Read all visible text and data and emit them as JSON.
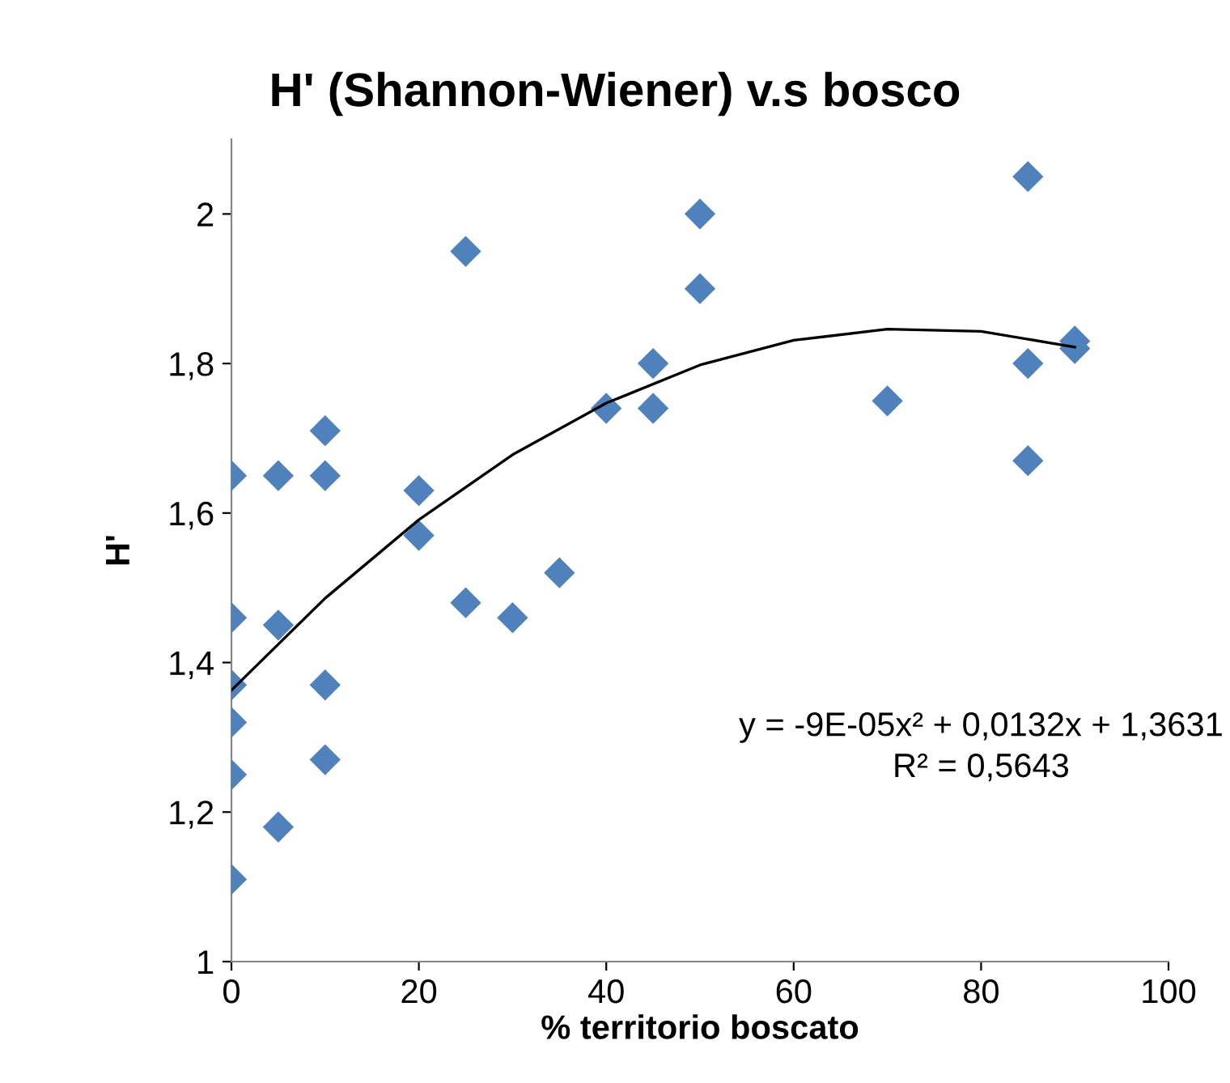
{
  "chart_data": {
    "type": "scatter",
    "title": "H' (Shannon-Wiener) v.s bosco",
    "xlabel": "% territorio boscato",
    "ylabel": "H'",
    "legend": false,
    "grid": false,
    "xlim": [
      0,
      100
    ],
    "xticks": [
      0,
      20,
      40,
      60,
      80,
      100
    ],
    "ylim": [
      1,
      2.1
    ],
    "yticks": [
      {
        "value": 1,
        "label": "1"
      },
      {
        "value": 1.2,
        "label": "1,2"
      },
      {
        "value": 1.4,
        "label": "1,4"
      },
      {
        "value": 1.6,
        "label": "1,6"
      },
      {
        "value": 1.8,
        "label": "1,8"
      },
      {
        "value": 2,
        "label": "2"
      }
    ],
    "series": [
      {
        "marker": "diamond",
        "color": "#4f81bd",
        "x": [
          0,
          0,
          0,
          0,
          0,
          0,
          5,
          5,
          5,
          10,
          10,
          10,
          10,
          20,
          20,
          25,
          25,
          30,
          35,
          40,
          45,
          45,
          50,
          50,
          70,
          85,
          85,
          85,
          90,
          90
        ],
        "values": [
          1.65,
          1.46,
          1.37,
          1.32,
          1.25,
          1.11,
          1.65,
          1.45,
          1.18,
          1.71,
          1.65,
          1.37,
          1.27,
          1.63,
          1.57,
          1.95,
          1.48,
          1.46,
          1.52,
          1.74,
          1.8,
          1.74,
          2.0,
          1.9,
          1.75,
          2.05,
          1.8,
          1.67,
          1.83,
          1.82
        ]
      },
      {
        "type": "line",
        "marker": "none",
        "color": "#000000",
        "x": [
          0,
          10,
          20,
          30,
          40,
          50,
          60,
          70,
          80,
          90
        ],
        "values": [
          1.363,
          1.486,
          1.591,
          1.678,
          1.747,
          1.798,
          1.831,
          1.846,
          1.843,
          1.822
        ]
      }
    ],
    "annotations": [
      "y = -9E-05x² + 0,0132x + 1,3631",
      "R² = 0,5643"
    ]
  }
}
